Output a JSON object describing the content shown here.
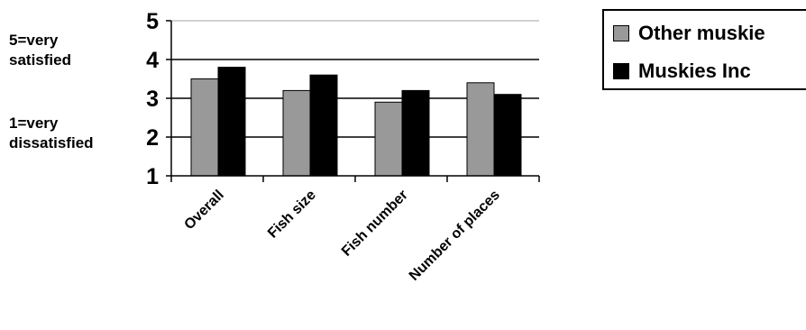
{
  "y_annotations": {
    "top": [
      "5=very",
      "satisfied"
    ],
    "bottom": [
      "1=very",
      "dissatisfied"
    ]
  },
  "chart_data": {
    "type": "bar",
    "categories": [
      "Overall",
      "Fish size",
      "Fish number",
      "Number of places"
    ],
    "series": [
      {
        "name": "Other muskie",
        "color": "#999999",
        "values": [
          3.5,
          3.2,
          2.9,
          3.4
        ]
      },
      {
        "name": "Muskies Inc",
        "color": "#000000",
        "values": [
          3.8,
          3.6,
          3.2,
          3.1
        ]
      }
    ],
    "ylim": [
      1,
      5
    ],
    "yticks": [
      1,
      2,
      3,
      4,
      5
    ],
    "grid": true,
    "legend_position": "right"
  }
}
